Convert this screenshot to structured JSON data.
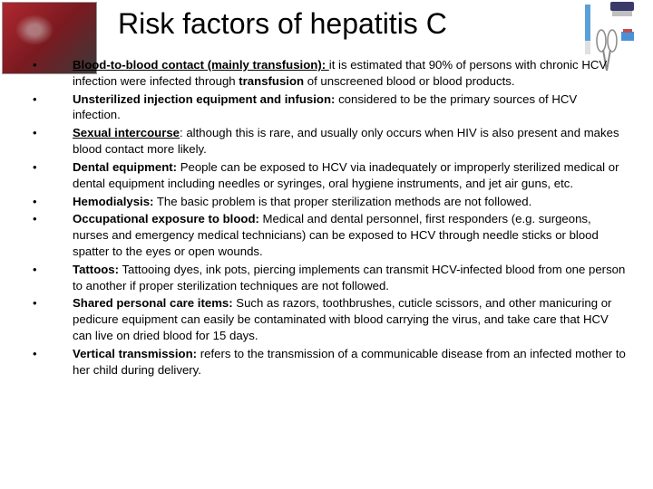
{
  "title": "Risk factors of hepatitis C",
  "bullets": [
    {
      "lead": "Blood-to-blood contact (mainly transfusion): ",
      "lead_underline": true,
      "mid": "it is estimated that 90% of persons with chronic HCV infection were infected through ",
      "emph": "transfusion ",
      "tail": "of unscreened blood or blood products."
    },
    {
      "lead": "Unsterilized injection equipment and infusion:",
      "lead_underline": false,
      "mid": " considered to be the primary sources of HCV infection.",
      "emph": "",
      "tail": ""
    },
    {
      "lead": "Sexual intercourse",
      "lead_underline": true,
      "mid": ": although this is rare, and usually only occurs when HIV is also present and makes blood contact more likely.",
      "emph": "",
      "tail": ""
    },
    {
      "lead": "Dental equipment:",
      "lead_underline": false,
      "mid": " People can be exposed to HCV via inadequately or improperly sterilized medical or dental equipment including needles or syringes, oral hygiene instruments, and jet air guns, etc.",
      "emph": "",
      "tail": ""
    },
    {
      "lead": "Hemodialysis:",
      "lead_underline": false,
      "mid": " The basic problem is that proper sterilization methods are not followed.",
      "emph": "",
      "tail": ""
    },
    {
      "lead": "Occupational exposure to blood:",
      "lead_underline": false,
      "mid": " Medical and dental personnel, first responders (e.g. surgeons, nurses and emergency medical technicians) can be exposed to HCV through needle sticks or blood spatter to the eyes or open wounds.",
      "emph": "",
      "tail": ""
    },
    {
      "lead": "Tattoos:",
      "lead_underline": false,
      "mid": " Tattooing dyes, ink pots, piercing implements can transmit HCV-infected blood from one person to another if proper sterilization techniques are not followed.",
      "emph": "",
      "tail": ""
    },
    {
      "lead": "Shared personal care items:",
      "lead_underline": false,
      "mid": " Such as razors, toothbrushes, cuticle scissors, and other manicuring or pedicure equipment can easily be contaminated with blood carrying the virus, and take care that HCV can live on dried blood for 15 days.",
      "emph": "",
      "tail": ""
    },
    {
      "lead": "Vertical transmission:",
      "lead_underline": false,
      "mid": " refers to the transmission of a communicable disease from an infected mother to her child during delivery.",
      "emph": "",
      "tail": ""
    }
  ],
  "colors": {
    "text": "#000000",
    "background": "#ffffff"
  },
  "typography": {
    "title_fontsize": 32,
    "body_fontsize": 13,
    "font_family": "Arial"
  }
}
